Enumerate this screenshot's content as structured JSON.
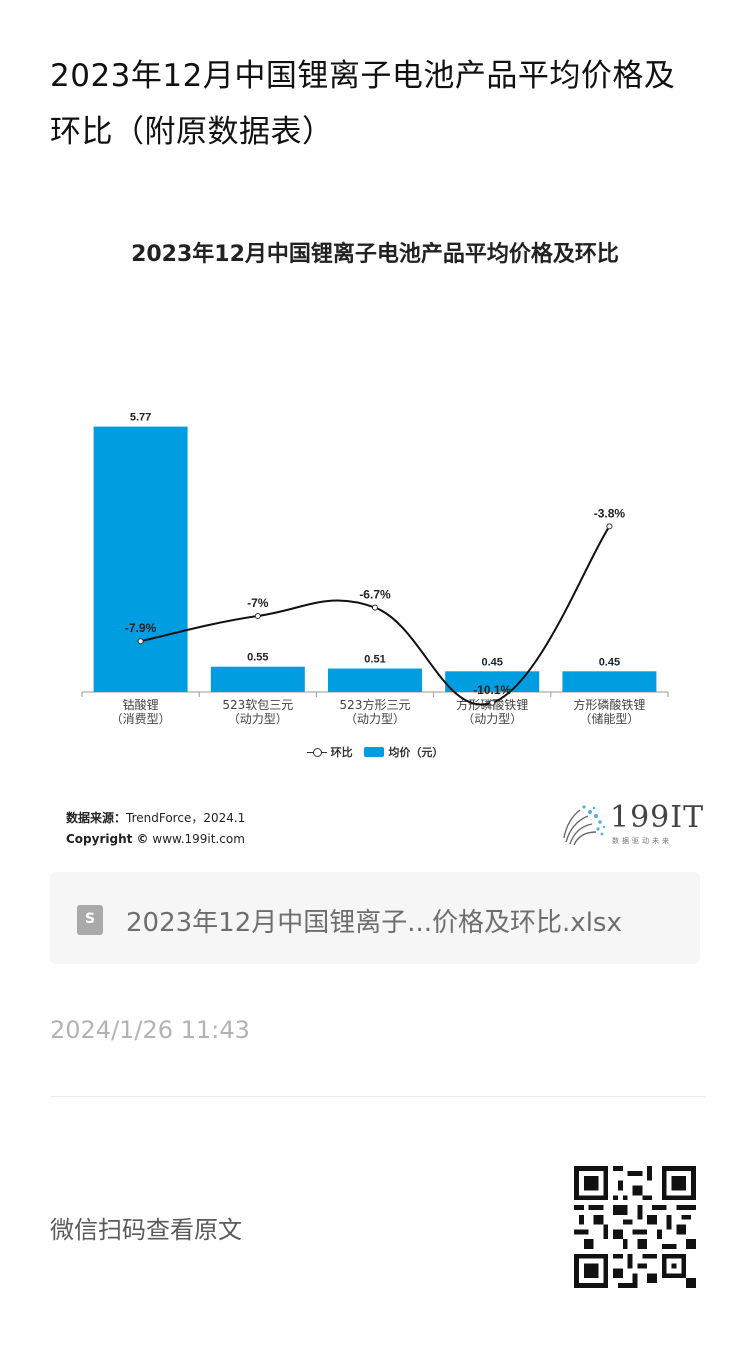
{
  "article": {
    "title": "2023年12月中国锂离子电池产品平均价格及环比（附原数据表）"
  },
  "chart_data": {
    "type": "bar",
    "title": "2023年12月中国锂离子电池产品平均价格及环比",
    "categories": [
      [
        "钴酸锂",
        "（消费型）"
      ],
      [
        "523软包三元",
        "（动力型）"
      ],
      [
        "523方形三元",
        "（动力型）"
      ],
      [
        "方形磷酸铁锂",
        "（动力型）"
      ],
      [
        "方形磷酸铁锂",
        "（储能型）"
      ]
    ],
    "series": [
      {
        "name": "均价（元）",
        "type": "bar",
        "values": [
          5.77,
          0.55,
          0.51,
          0.45,
          0.45
        ],
        "labels": [
          "5.77",
          "0.55",
          "0.51",
          "0.45",
          "0.45"
        ],
        "color": "#009ee0"
      },
      {
        "name": "环比",
        "type": "line",
        "values": [
          -7.9,
          -7.0,
          -6.7,
          -10.1,
          -3.8
        ],
        "labels": [
          "-7.9%",
          "-7%",
          "-6.7%",
          "-10.1%",
          "-3.8%"
        ],
        "color": "#111111"
      }
    ],
    "ylim_bar": [
      0,
      6
    ],
    "ylim_line": [
      -30,
      0
    ],
    "legend_position": "bottom",
    "grid": false
  },
  "source": {
    "label": "数据来源：",
    "value": "TrendForce，2024.1",
    "copyright_label": "Copyright ©",
    "copyright_value": "www.199it.com"
  },
  "logo": {
    "text": "199IT",
    "tagline": "数据驱动未来"
  },
  "attachment": {
    "icon": "spreadsheet-file-icon",
    "icon_glyph": "S",
    "filename": "2023年12月中国锂离子...价格及环比.xlsx"
  },
  "timestamp": "2024/1/26 11:43",
  "qr": {
    "caption": "微信扫码查看原文",
    "icon": "qr-code-icon"
  }
}
